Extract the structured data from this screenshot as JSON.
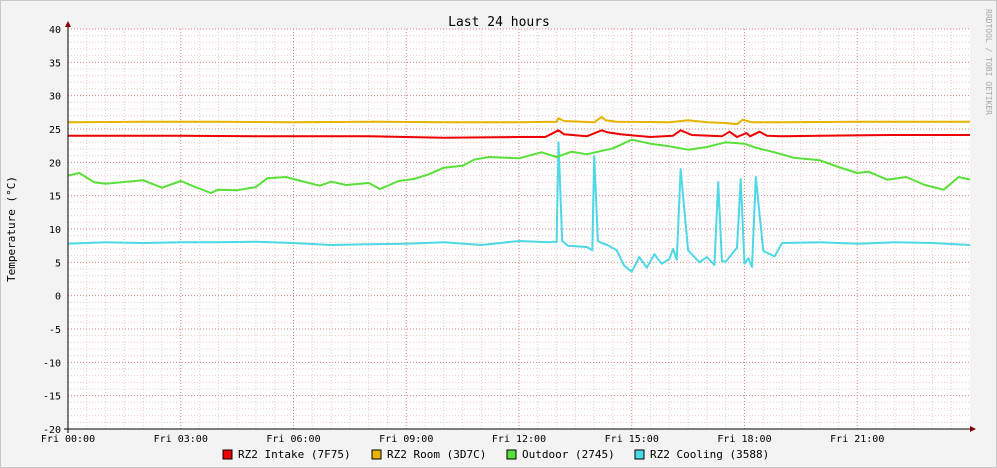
{
  "chart_data": {
    "type": "line",
    "title": "Last 24 hours",
    "ylabel": "Temperature (°C)",
    "watermark": "RRDTOOL / TOBI OETIKER",
    "ylim": [
      -20,
      40
    ],
    "yticks": [
      40,
      35,
      30,
      25,
      20,
      15,
      10,
      5,
      0,
      -5,
      -10,
      -15,
      -20
    ],
    "xlim": [
      0,
      24
    ],
    "x_unit": "hours since Fri 00:00",
    "xticks": [
      {
        "x": 0,
        "label": "Fri 00:00"
      },
      {
        "x": 3,
        "label": "Fri 03:00"
      },
      {
        "x": 6,
        "label": "Fri 06:00"
      },
      {
        "x": 9,
        "label": "Fri 09:00"
      },
      {
        "x": 12,
        "label": "Fri 12:00"
      },
      {
        "x": 15,
        "label": "Fri 15:00"
      },
      {
        "x": 18,
        "label": "Fri 18:00"
      },
      {
        "x": 21,
        "label": "Fri 21:00"
      }
    ],
    "grid": true,
    "legend_position": "bottom",
    "series": [
      {
        "name": "RZ2 Intake (7F75)",
        "color": "#ee0000",
        "x": [
          0,
          1,
          3,
          5,
          8,
          10,
          12,
          12.7,
          13.05,
          13.2,
          13.8,
          14.2,
          14.35,
          14.7,
          15.5,
          16.1,
          16.3,
          16.6,
          17.4,
          17.6,
          17.8,
          18.05,
          18.15,
          18.4,
          18.6,
          19,
          20,
          22,
          24
        ],
        "y": [
          24,
          24,
          24,
          23.9,
          23.9,
          23.7,
          23.8,
          23.8,
          24.8,
          24.2,
          23.9,
          24.8,
          24.5,
          24.2,
          23.8,
          24,
          24.8,
          24.1,
          23.9,
          24.6,
          23.8,
          24.4,
          23.9,
          24.6,
          24,
          23.9,
          24,
          24.1,
          24.1
        ]
      },
      {
        "name": "RZ2 Room (3D7C)",
        "color": "#e6b400",
        "x": [
          0,
          2,
          4,
          6,
          8,
          10,
          12,
          13,
          13.05,
          13.2,
          14,
          14.2,
          14.3,
          14.6,
          16,
          16.5,
          17,
          17.5,
          17.8,
          17.95,
          18.2,
          19,
          21,
          24
        ],
        "y": [
          26,
          26.1,
          26.1,
          26,
          26.1,
          26,
          26,
          26.1,
          26.6,
          26.2,
          26,
          26.8,
          26.3,
          26.1,
          26,
          26.3,
          26,
          25.9,
          25.7,
          26.4,
          26,
          26,
          26.1,
          26.1
        ]
      },
      {
        "name": "Outdoor (2745)",
        "color": "#59e038",
        "x": [
          0,
          0.3,
          0.7,
          1,
          2,
          2.5,
          3,
          3.3,
          3.8,
          4,
          4.5,
          5,
          5.3,
          5.8,
          6.2,
          6.7,
          7,
          7.4,
          8,
          8.3,
          8.8,
          9.2,
          9.6,
          10,
          10.5,
          10.8,
          11.2,
          12,
          12.6,
          13,
          13.4,
          13.8,
          14.5,
          15,
          15.5,
          16,
          16.5,
          17,
          17.5,
          18,
          18.3,
          18.8,
          19.3,
          20,
          20.5,
          21,
          21.3,
          21.8,
          22.3,
          22.8,
          23.3,
          23.7,
          24
        ],
        "y": [
          18,
          18.4,
          17,
          16.8,
          17.3,
          16.2,
          17.2,
          16.5,
          15.4,
          15.9,
          15.8,
          16.3,
          17.6,
          17.8,
          17.2,
          16.5,
          17.1,
          16.6,
          16.9,
          16,
          17.2,
          17.5,
          18.2,
          19.2,
          19.5,
          20.4,
          20.8,
          20.6,
          21.5,
          20.8,
          21.6,
          21.2,
          22.1,
          23.4,
          22.8,
          22.4,
          21.9,
          22.3,
          23,
          22.8,
          22.2,
          21.5,
          20.7,
          20.3,
          19.3,
          18.4,
          18.6,
          17.4,
          17.8,
          16.6,
          15.9,
          17.8,
          17.4
        ]
      },
      {
        "name": "RZ2 Cooling (3588)",
        "color": "#4dd8e6",
        "x": [
          0,
          1,
          2,
          3,
          4,
          5,
          6,
          7,
          8,
          9,
          10,
          11,
          12,
          12.8,
          12.9,
          13.0,
          13.05,
          13.15,
          13.3,
          13.8,
          13.95,
          14.0,
          14.1,
          14.2,
          14.35,
          14.6,
          14.8,
          15.0,
          15.2,
          15.4,
          15.6,
          15.8,
          16.0,
          16.1,
          16.2,
          16.3,
          16.5,
          16.8,
          17.0,
          17.2,
          17.3,
          17.4,
          17.5,
          17.8,
          17.9,
          18.0,
          18.1,
          18.2,
          18.3,
          18.5,
          18.8,
          19,
          20,
          21,
          22,
          23,
          24
        ],
        "y": [
          7.8,
          8,
          7.9,
          8,
          8,
          8.1,
          7.9,
          7.6,
          7.7,
          7.8,
          8,
          7.6,
          8.2,
          8,
          8.1,
          8,
          23,
          8.2,
          7.5,
          7.3,
          6.8,
          21,
          8.2,
          7.9,
          7.6,
          6.8,
          4.5,
          3.6,
          5.8,
          4.2,
          6.2,
          4.8,
          5.5,
          7,
          5.4,
          19,
          6.8,
          5,
          5.8,
          4.6,
          17,
          5.2,
          5.1,
          7.2,
          17.5,
          4.8,
          5.6,
          4.3,
          17.8,
          6.7,
          5.9,
          7.9,
          8,
          7.8,
          8,
          7.9,
          7.6
        ]
      }
    ]
  }
}
